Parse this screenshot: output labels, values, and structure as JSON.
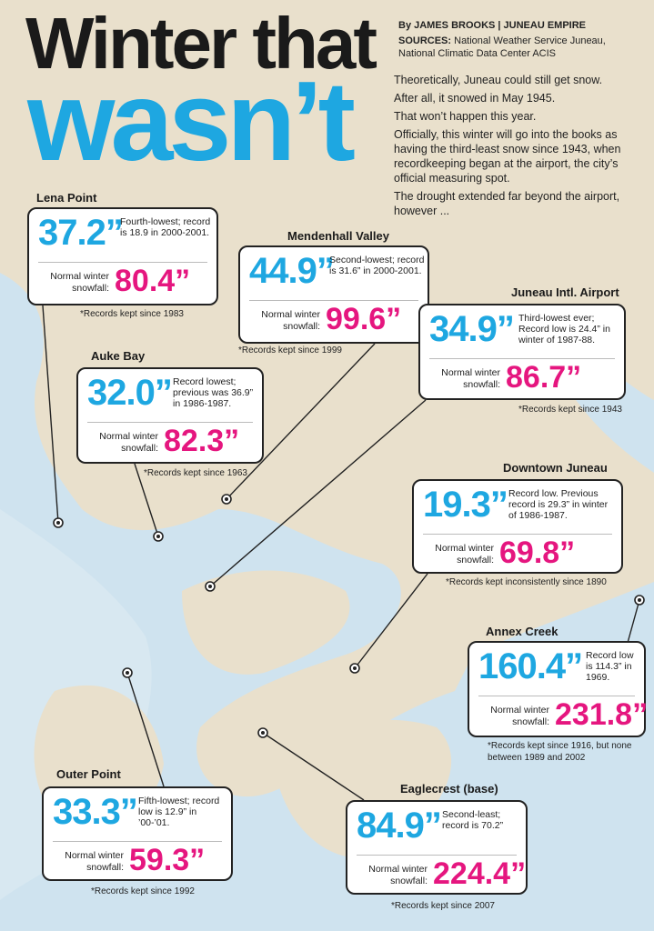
{
  "header": {
    "title_line1": "Winter that",
    "title_line2": "wasn’t",
    "byline": "By JAMES BROOKS | JUNEAU EMPIRE",
    "sources_label": "SOURCES:",
    "sources": "National Weather Service Juneau, National Climatic Data Center ACIS"
  },
  "intro": [
    "Theoretically, Juneau could still get snow.",
    "After all, it snowed in May 1945.",
    "That won’t happen this year.",
    "Officially, this winter will go into the books as having the third-least snow since 1943, when recordkeeping began at the airport, the city’s official measuring spot.",
    "The drought extended far beyond the airport, however ..."
  ],
  "locations": [
    {
      "name": "Lena Point",
      "snowfall": "37.2”",
      "note": "Fourth-lowest; record is 18.9 in 2000-2001.",
      "normal_label": "Normal winter snowfall:",
      "normal": "80.4”",
      "records": "*Records kept since 1983"
    },
    {
      "name": "Mendenhall Valley",
      "snowfall": "44.9”",
      "note": "Second-lowest; record is 31.6” in 2000-2001.",
      "normal_label": "Normal winter snowfall:",
      "normal": "99.6”",
      "records": "*Records kept since 1999"
    },
    {
      "name": "Juneau Intl. Airport",
      "snowfall": "34.9”",
      "note": "Third-lowest ever; Record low is 24.4” in winter of 1987-88.",
      "normal_label": "Normal winter snowfall:",
      "normal": "86.7”",
      "records": "*Records kept since 1943"
    },
    {
      "name": "Auke Bay",
      "snowfall": "32.0”",
      "note": "Record lowest; previous was 36.9” in 1986-1987.",
      "normal_label": "Normal winter snowfall:",
      "normal": "82.3”",
      "records": "*Records kept since 1963"
    },
    {
      "name": "Downtown Juneau",
      "snowfall": "19.3”",
      "note": "Record low. Previous record is 29.3” in winter of 1986-1987.",
      "normal_label": "Normal winter snowfall:",
      "normal": "69.8”",
      "records": "*Records kept inconsistently since 1890"
    },
    {
      "name": "Annex Creek",
      "snowfall": "160.4”",
      "note": "Record low is 114.3” in 1969.",
      "normal_label": "Normal winter snowfall:",
      "normal": "231.8”",
      "records": "*Records kept since 1916, but none between 1989 and 2002"
    },
    {
      "name": "Outer Point",
      "snowfall": "33.3”",
      "note": "Fifth-lowest; record low is 12.9” in ’00-’01.",
      "normal_label": "Normal winter snowfall:",
      "normal": "59.3”",
      "records": "*Records kept since 1992"
    },
    {
      "name": "Eaglecrest (base)",
      "snowfall": "84.9”",
      "note": "Second-least; record is 70.2”",
      "normal_label": "Normal winter snowfall:",
      "normal": "224.4”",
      "records": "*Records kept since 2007"
    }
  ]
}
